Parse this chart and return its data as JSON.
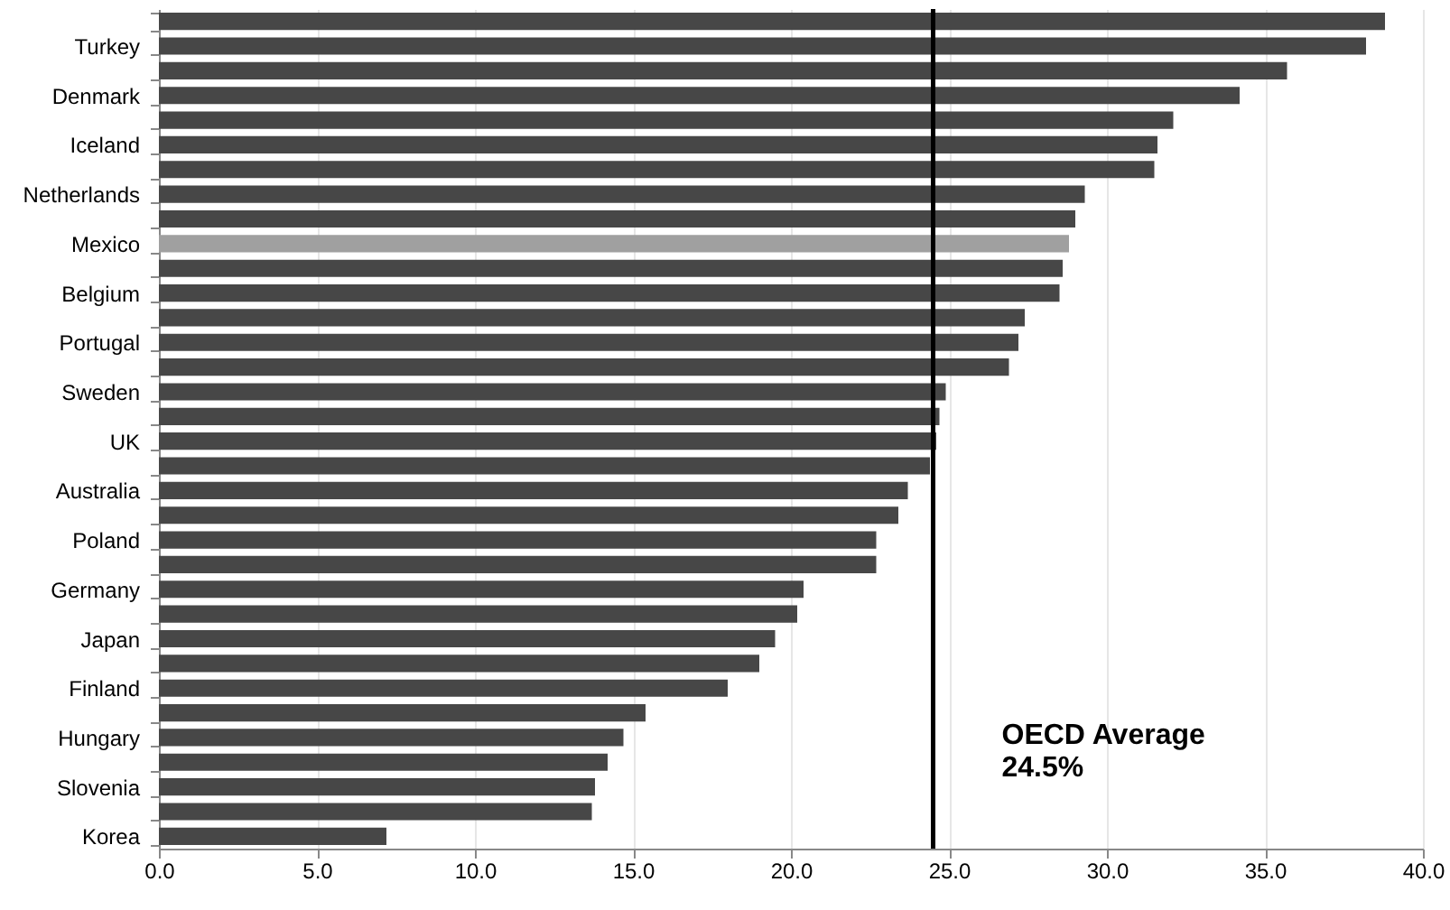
{
  "chart_data": {
    "type": "bar",
    "orientation": "horizontal",
    "categories": [
      null,
      "Turkey",
      null,
      "Denmark",
      null,
      "Iceland",
      null,
      "Netherlands",
      null,
      "Mexico",
      null,
      "Belgium",
      null,
      "Portugal",
      null,
      "Sweden",
      null,
      "UK",
      null,
      "Australia",
      null,
      "Poland",
      null,
      "Germany",
      null,
      "Japan",
      null,
      "Finland",
      null,
      "Hungary",
      null,
      "Slovenia",
      null,
      "Korea"
    ],
    "values": [
      38.8,
      38.2,
      35.7,
      34.2,
      32.1,
      31.6,
      31.5,
      29.3,
      29.0,
      28.8,
      28.6,
      28.5,
      27.4,
      27.2,
      26.9,
      24.9,
      24.7,
      24.6,
      24.4,
      23.7,
      23.4,
      22.7,
      22.7,
      20.4,
      20.2,
      19.5,
      19.0,
      18.0,
      15.4,
      14.7,
      14.2,
      13.8,
      13.7,
      7.2
    ],
    "colors": [
      "#474747",
      "#474747",
      "#474747",
      "#474747",
      "#474747",
      "#474747",
      "#474747",
      "#474747",
      "#474747",
      "#a0a0a0",
      "#474747",
      "#474747",
      "#474747",
      "#474747",
      "#474747",
      "#474747",
      "#474747",
      "#474747",
      "#474747",
      "#474747",
      "#474747",
      "#474747",
      "#474747",
      "#474747",
      "#474747",
      "#474747",
      "#474747",
      "#474747",
      "#474747",
      "#474747",
      "#474747",
      "#474747",
      "#474747",
      "#474747"
    ],
    "xlim": [
      0,
      40
    ],
    "xticks": [
      {
        "value": 0,
        "label": "0.0"
      },
      {
        "value": 5,
        "label": "5.0"
      },
      {
        "value": 10,
        "label": "10.0"
      },
      {
        "value": 15,
        "label": "15.0"
      },
      {
        "value": 20,
        "label": "20.0"
      },
      {
        "value": 25,
        "label": "25.0"
      },
      {
        "value": 30,
        "label": "30.0"
      },
      {
        "value": 35,
        "label": "35.0"
      },
      {
        "value": 40,
        "label": "40.0"
      }
    ],
    "grid": "x",
    "ref_lines": [
      {
        "axis": "x",
        "value": 24.5,
        "label": "OECD Average\n24.5%",
        "color": "#000000"
      }
    ]
  }
}
